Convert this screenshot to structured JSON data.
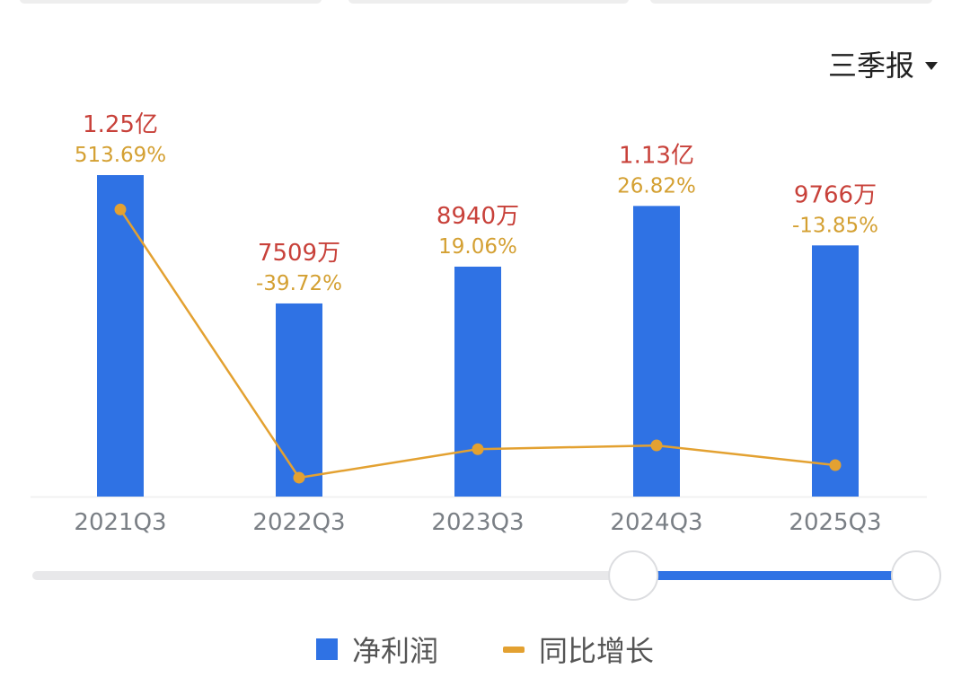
{
  "period_selector": {
    "label": "三季报",
    "caret_icon": "caret-down-icon"
  },
  "colors": {
    "bar": "#2f72e4",
    "line": "#e3a131",
    "value_label": "#c8413a",
    "growth_label": "#d4a032",
    "axis_text": "#7a7f85",
    "slider_track": "#e8e8ea",
    "slider_active": "#2f72e4"
  },
  "chart_data": {
    "type": "bar",
    "categories": [
      "2021Q3",
      "2022Q3",
      "2023Q3",
      "2024Q3",
      "2025Q3"
    ],
    "series": [
      {
        "name": "净利润",
        "type": "bar",
        "values": [
          12500,
          7509,
          8940,
          11300,
          9766
        ],
        "labels": [
          "1.25亿",
          "7509万",
          "8940万",
          "1.13亿",
          "9766万"
        ]
      },
      {
        "name": "同比增长",
        "type": "line",
        "values": [
          513.69,
          -39.72,
          19.06,
          26.82,
          -13.85
        ],
        "labels": [
          "513.69%",
          "-39.72%",
          "19.06%",
          "26.82%",
          "-13.85%"
        ]
      }
    ],
    "legend_position": "bottom",
    "grid": false
  },
  "range_slider": {
    "start": 0.68,
    "end": 1.0
  }
}
